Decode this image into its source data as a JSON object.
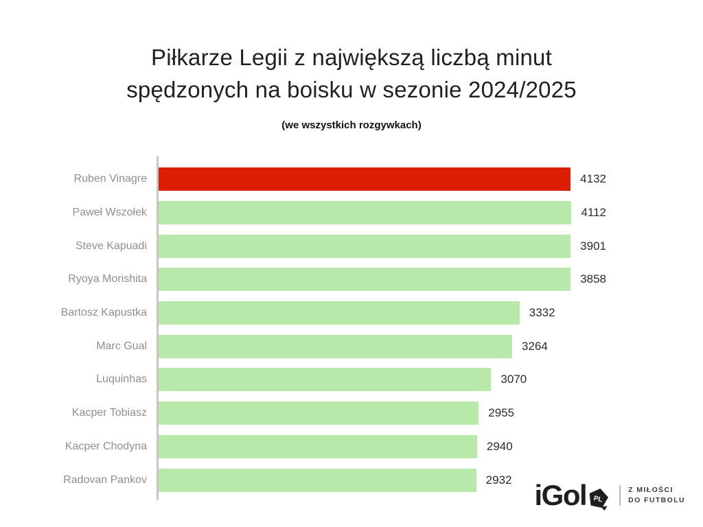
{
  "title": {
    "line1": "Piłkarze Legii z największą liczbą minut",
    "line2": "spędzonych na boisku w sezonie 2024/2025"
  },
  "subtitle": "(we wszystkich rozgywkach)",
  "chart_data": {
    "type": "bar",
    "orientation": "horizontal",
    "title": "Piłkarze Legii z największą liczbą minut spędzonych na boisku w sezonie 2024/2025",
    "subtitle": "(we wszystkich rozgywkach)",
    "categories": [
      "Ruben Vinagre",
      "Paweł Wszołek",
      "Steve Kapuadi",
      "Ryoya Morishita",
      "Bartosz Kapustka",
      "Marc Gual",
      "Luquinhas",
      "Kacper Tobiasz",
      "Kacper Chodyna",
      "Radovan Pankov"
    ],
    "values": [
      4132,
      4112,
      3901,
      3858,
      3332,
      3264,
      3070,
      2955,
      2940,
      2932
    ],
    "highlight_index": 0,
    "xlim": [
      0,
      4132
    ],
    "grid": false,
    "legend": false,
    "value_labels_shown": true,
    "colors": {
      "highlight_bar": "#dc1e04",
      "bar": "#b9e8ab",
      "axis": "#c6c6c6",
      "category_label": "#8f8f8f",
      "value_label": "#2b2b2b"
    }
  },
  "logo": {
    "brand": "iGol",
    "badge": "PL",
    "tagline_line1": "Z MIŁOŚCI",
    "tagline_line2": "DO FUTBOLU"
  }
}
